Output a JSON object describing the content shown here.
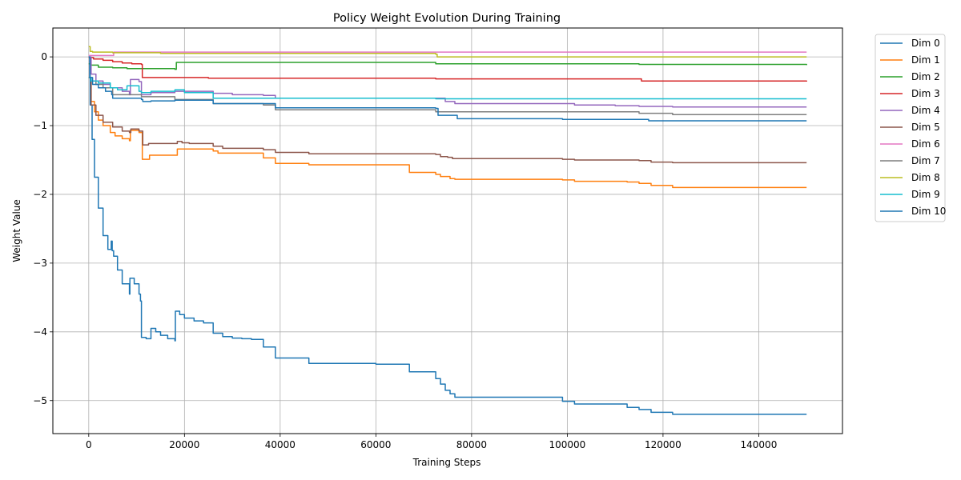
{
  "chart_data": {
    "type": "line",
    "title": "Policy Weight Evolution During Training",
    "xlabel": "Training Steps",
    "ylabel": "Weight Value",
    "xlim": [
      -7500,
      157500
    ],
    "ylim": [
      -5.48,
      0.42
    ],
    "xticks": [
      0,
      20000,
      40000,
      60000,
      80000,
      100000,
      120000,
      140000
    ],
    "xtick_labels": [
      "0",
      "20000",
      "40000",
      "60000",
      "80000",
      "100000",
      "120000",
      "140000"
    ],
    "yticks": [
      0,
      -1,
      -2,
      -3,
      -4,
      -5
    ],
    "ytick_labels": [
      "0",
      "−1",
      "−2",
      "−3",
      "−4",
      "−5"
    ],
    "grid": true,
    "legend_position": "outside-upper-right",
    "series": [
      {
        "name": "Dim 0",
        "color": "#1f77b4",
        "step": true,
        "x": [
          0,
          300,
          700,
          1200,
          2000,
          3000,
          4000,
          4700,
          4900,
          5200,
          6000,
          7000,
          8500,
          8600,
          9500,
          10500,
          10800,
          11000,
          12000,
          13000,
          14000,
          15000,
          16500,
          18000,
          18100,
          19000,
          20000,
          22000,
          24000,
          26000,
          28000,
          30000,
          32000,
          34000,
          36500,
          39000,
          46000,
          60000,
          67000,
          72500,
          73500,
          74500,
          75500,
          76500,
          99000,
          101500,
          112500,
          115000,
          117500,
          122000,
          150000
        ],
        "y": [
          0,
          -0.7,
          -1.2,
          -1.75,
          -2.2,
          -2.6,
          -2.8,
          -2.68,
          -2.82,
          -2.9,
          -3.1,
          -3.3,
          -3.45,
          -3.22,
          -3.3,
          -3.45,
          -3.55,
          -4.08,
          -4.1,
          -3.95,
          -4.0,
          -4.05,
          -4.1,
          -4.13,
          -3.7,
          -3.75,
          -3.8,
          -3.84,
          -3.87,
          -4.02,
          -4.07,
          -4.09,
          -4.1,
          -4.11,
          -4.22,
          -4.38,
          -4.46,
          -4.47,
          -4.58,
          -4.68,
          -4.76,
          -4.85,
          -4.9,
          -4.95,
          -5.01,
          -5.05,
          -5.1,
          -5.13,
          -5.17,
          -5.2,
          -5.2
        ]
      },
      {
        "name": "Dim 1",
        "color": "#ff7f0e",
        "step": true,
        "x": [
          0,
          500,
          1200,
          2000,
          3000,
          4500,
          5500,
          7000,
          8500,
          8700,
          10500,
          11200,
          12700,
          18500,
          26000,
          27000,
          36500,
          39000,
          46000,
          67000,
          72500,
          73500,
          75500,
          76500,
          99000,
          101500,
          112500,
          115000,
          117500,
          122000,
          150000
        ],
        "y": [
          -0.3,
          -0.65,
          -0.8,
          -0.92,
          -1.0,
          -1.1,
          -1.15,
          -1.19,
          -1.22,
          -1.07,
          -1.1,
          -1.49,
          -1.43,
          -1.34,
          -1.37,
          -1.4,
          -1.47,
          -1.55,
          -1.57,
          -1.68,
          -1.71,
          -1.74,
          -1.77,
          -1.78,
          -1.79,
          -1.81,
          -1.82,
          -1.84,
          -1.87,
          -1.9,
          -1.9
        ]
      },
      {
        "name": "Dim 2",
        "color": "#2ca02c",
        "step": true,
        "x": [
          0,
          500,
          2000,
          5000,
          8000,
          11000,
          18000,
          18300,
          72500,
          115000,
          150000
        ],
        "y": [
          -0.1,
          -0.12,
          -0.15,
          -0.16,
          -0.17,
          -0.17,
          -0.18,
          -0.08,
          -0.1,
          -0.11,
          -0.12
        ]
      },
      {
        "name": "Dim 3",
        "color": "#d62728",
        "step": true,
        "x": [
          0,
          1000,
          3000,
          5000,
          7000,
          9000,
          11000,
          11200,
          25000,
          72500,
          115000,
          115500,
          150000
        ],
        "y": [
          -0.01,
          -0.03,
          -0.05,
          -0.07,
          -0.09,
          -0.1,
          -0.11,
          -0.3,
          -0.31,
          -0.32,
          -0.32,
          -0.35,
          -0.36
        ]
      },
      {
        "name": "Dim 4",
        "color": "#9467bd",
        "step": true,
        "x": [
          0,
          500,
          1500,
          3000,
          4500,
          7000,
          8500,
          8700,
          10500,
          11000,
          13000,
          18000,
          26000,
          30000,
          36500,
          39000,
          72500,
          74500,
          76500,
          99000,
          101500,
          110000,
          115000,
          122000,
          150000
        ],
        "y": [
          0,
          -0.25,
          -0.35,
          -0.4,
          -0.45,
          -0.5,
          -0.55,
          -0.33,
          -0.36,
          -0.55,
          -0.52,
          -0.5,
          -0.53,
          -0.55,
          -0.56,
          -0.6,
          -0.6,
          -0.65,
          -0.68,
          -0.68,
          -0.7,
          -0.71,
          -0.72,
          -0.73,
          -0.73
        ]
      },
      {
        "name": "Dim 5",
        "color": "#8c564b",
        "step": true,
        "x": [
          0,
          500,
          1500,
          3000,
          5000,
          7000,
          8500,
          8800,
          10500,
          11300,
          12500,
          18500,
          19500,
          21000,
          26000,
          28000,
          36500,
          39000,
          46000,
          67000,
          72500,
          73500,
          75000,
          76000,
          99000,
          101500,
          115000,
          117500,
          122000,
          150000
        ],
        "y": [
          -0.3,
          -0.7,
          -0.85,
          -0.95,
          -1.02,
          -1.08,
          -1.1,
          -1.05,
          -1.08,
          -1.28,
          -1.26,
          -1.23,
          -1.25,
          -1.26,
          -1.3,
          -1.33,
          -1.35,
          -1.39,
          -1.41,
          -1.41,
          -1.42,
          -1.45,
          -1.46,
          -1.48,
          -1.49,
          -1.5,
          -1.51,
          -1.53,
          -1.54,
          -1.54
        ]
      },
      {
        "name": "Dim 6",
        "color": "#e377c2",
        "step": true,
        "x": [
          0,
          500,
          5000,
          5200,
          150000
        ],
        "y": [
          0.02,
          0.02,
          0.02,
          0.07,
          0.07
        ]
      },
      {
        "name": "Dim 7",
        "color": "#7f7f7f",
        "step": true,
        "x": [
          0,
          500,
          1500,
          3000,
          5000,
          8000,
          11000,
          18000,
          26000,
          36500,
          39000,
          72500,
          115000,
          122000,
          150000
        ],
        "y": [
          -0.3,
          -0.35,
          -0.4,
          -0.45,
          -0.55,
          -0.55,
          -0.58,
          -0.62,
          -0.68,
          -0.7,
          -0.77,
          -0.8,
          -0.82,
          -0.84,
          -0.84
        ]
      },
      {
        "name": "Dim 8",
        "color": "#bcbd22",
        "step": true,
        "x": [
          0,
          300,
          800,
          2000,
          5000,
          15000,
          72500,
          72800,
          150000
        ],
        "y": [
          0.15,
          0.08,
          0.07,
          0.07,
          0.06,
          0.05,
          0.04,
          0.0,
          0.0
        ]
      },
      {
        "name": "Dim 9",
        "color": "#17becf",
        "step": true,
        "x": [
          0,
          500,
          2000,
          4500,
          6000,
          8000,
          10500,
          11000,
          13000,
          18000,
          20000,
          26000,
          72500,
          150000
        ],
        "y": [
          -0.3,
          -0.35,
          -0.38,
          -0.45,
          -0.48,
          -0.42,
          -0.5,
          -0.52,
          -0.5,
          -0.48,
          -0.52,
          -0.6,
          -0.61,
          -0.61
        ]
      },
      {
        "name": "Dim 10",
        "color": "#1f77b4",
        "step": true,
        "x": [
          0,
          200,
          800,
          2000,
          3500,
          4800,
          5000,
          8000,
          11000,
          11300,
          13000,
          18000,
          26000,
          39000,
          72500,
          73000,
          77000,
          99000,
          117000,
          150000
        ],
        "y": [
          0,
          -0.3,
          -0.4,
          -0.45,
          -0.5,
          -0.55,
          -0.6,
          -0.6,
          -0.62,
          -0.65,
          -0.64,
          -0.63,
          -0.68,
          -0.74,
          -0.75,
          -0.85,
          -0.9,
          -0.91,
          -0.93,
          -0.93
        ]
      }
    ]
  }
}
